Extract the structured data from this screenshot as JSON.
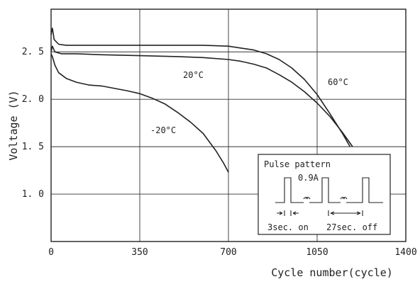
{
  "chart_data": {
    "type": "line",
    "xlabel": "Cycle number(cycle)",
    "ylabel": "Voltage (V)",
    "xlim": [
      0,
      1400
    ],
    "ylim": [
      0.5,
      2.95
    ],
    "xticks": [
      0,
      350,
      700,
      1050,
      1400
    ],
    "xtick_labels": [
      "0",
      "350",
      "700",
      "1050",
      "1400"
    ],
    "yticks": [
      1.0,
      1.5,
      2.0,
      2.5
    ],
    "ytick_labels": [
      "1. 0",
      "1. 5",
      "2. 0",
      "2. 5"
    ],
    "grid": true,
    "series": [
      {
        "name": "60°C",
        "x": [
          0,
          5,
          12,
          30,
          60,
          100,
          200,
          350,
          500,
          600,
          700,
          750,
          800,
          850,
          900,
          950,
          1000,
          1050,
          1100,
          1150,
          1180
        ],
        "y": [
          2.68,
          2.75,
          2.63,
          2.58,
          2.57,
          2.57,
          2.57,
          2.57,
          2.57,
          2.57,
          2.56,
          2.54,
          2.52,
          2.48,
          2.42,
          2.33,
          2.21,
          2.05,
          1.85,
          1.64,
          1.5
        ]
      },
      {
        "name": "20°C",
        "x": [
          0,
          5,
          15,
          40,
          100,
          200,
          350,
          500,
          600,
          700,
          750,
          800,
          850,
          900,
          950,
          1000,
          1050,
          1100,
          1150,
          1190
        ],
        "y": [
          2.5,
          2.56,
          2.5,
          2.48,
          2.48,
          2.47,
          2.46,
          2.45,
          2.44,
          2.42,
          2.4,
          2.37,
          2.33,
          2.26,
          2.18,
          2.08,
          1.96,
          1.82,
          1.65,
          1.5
        ]
      },
      {
        "name": "-20°C",
        "x": [
          0,
          5,
          15,
          30,
          60,
          100,
          150,
          200,
          300,
          350,
          400,
          450,
          500,
          550,
          600,
          650,
          680,
          700
        ],
        "y": [
          2.48,
          2.45,
          2.36,
          2.28,
          2.22,
          2.18,
          2.15,
          2.14,
          2.09,
          2.06,
          2.01,
          1.95,
          1.86,
          1.76,
          1.64,
          1.46,
          1.33,
          1.23
        ]
      }
    ],
    "annotations": {
      "t20": "20°C",
      "t60": "60°C",
      "tminus20": "-20°C"
    },
    "inset": {
      "title": "Pulse pattern",
      "current": "0.9A",
      "on_label": "3sec. on",
      "off_label": "27sec. off"
    }
  }
}
